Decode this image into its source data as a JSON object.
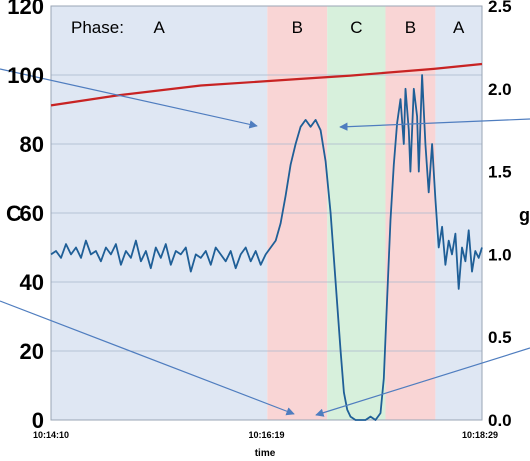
{
  "chart_data": {
    "type": "line",
    "title": "",
    "xlabel": "time",
    "ylabel_left": "C",
    "ylabel_right": "g",
    "x_ticks": [
      "10:14:10",
      "10:16:19",
      "10:18:29"
    ],
    "y_left_ticks": [
      "0",
      "20",
      "40",
      "60",
      "80",
      "100",
      "120"
    ],
    "y_left_range": [
      0,
      120
    ],
    "y_right_ticks": [
      "0.0",
      "0.5",
      "1.0",
      "1.5",
      "2.0",
      "2.5"
    ],
    "y_right_range": [
      0,
      2.5
    ],
    "x_range_seconds": [
      0,
      259
    ],
    "grid": "horizontal",
    "phase_legend_label": "Phase:",
    "phases": [
      {
        "label": "A",
        "start": 0,
        "end": 130,
        "color": "#dfe7f3"
      },
      {
        "label": "B",
        "start": 130,
        "end": 166,
        "color": "#f9d5d5"
      },
      {
        "label": "C",
        "start": 166,
        "end": 201,
        "color": "#d7f0dc"
      },
      {
        "label": "B",
        "start": 201,
        "end": 231,
        "color": "#f9d5d5"
      },
      {
        "label": "A",
        "start": 231,
        "end": 259,
        "color": "#dfe7f3"
      }
    ],
    "series": [
      {
        "axis": "left",
        "color": "#1f5f97",
        "points": [
          [
            0,
            48
          ],
          [
            3,
            49
          ],
          [
            6,
            47
          ],
          [
            9,
            51
          ],
          [
            12,
            48
          ],
          [
            15,
            50
          ],
          [
            18,
            47
          ],
          [
            21,
            52
          ],
          [
            24,
            48
          ],
          [
            27,
            49
          ],
          [
            30,
            46
          ],
          [
            33,
            50
          ],
          [
            36,
            48
          ],
          [
            39,
            51
          ],
          [
            42,
            45
          ],
          [
            45,
            49
          ],
          [
            48,
            47
          ],
          [
            51,
            52
          ],
          [
            54,
            46
          ],
          [
            57,
            49
          ],
          [
            60,
            44
          ],
          [
            63,
            50
          ],
          [
            66,
            47
          ],
          [
            69,
            51
          ],
          [
            72,
            45
          ],
          [
            75,
            49
          ],
          [
            78,
            48
          ],
          [
            81,
            50
          ],
          [
            84,
            43
          ],
          [
            87,
            48
          ],
          [
            90,
            47
          ],
          [
            93,
            49
          ],
          [
            96,
            45
          ],
          [
            99,
            50
          ],
          [
            102,
            48
          ],
          [
            105,
            46
          ],
          [
            108,
            49
          ],
          [
            111,
            44
          ],
          [
            114,
            48
          ],
          [
            117,
            50
          ],
          [
            120,
            46
          ],
          [
            123,
            49
          ],
          [
            126,
            45
          ],
          [
            129,
            48
          ],
          [
            132,
            50
          ],
          [
            135,
            52
          ],
          [
            138,
            57
          ],
          [
            141,
            65
          ],
          [
            144,
            74
          ],
          [
            147,
            80
          ],
          [
            150,
            85
          ],
          [
            153,
            87
          ],
          [
            156,
            85
          ],
          [
            159,
            87
          ],
          [
            162,
            84
          ],
          [
            165,
            75
          ],
          [
            168,
            60
          ],
          [
            171,
            40
          ],
          [
            174,
            20
          ],
          [
            176,
            8
          ],
          [
            178,
            3
          ],
          [
            180,
            1
          ],
          [
            183,
            0
          ],
          [
            186,
            0
          ],
          [
            189,
            0
          ],
          [
            192,
            1
          ],
          [
            195,
            0
          ],
          [
            198,
            2
          ],
          [
            200,
            12
          ],
          [
            202,
            35
          ],
          [
            204,
            58
          ],
          [
            206,
            74
          ],
          [
            208,
            86
          ],
          [
            210,
            93
          ],
          [
            212,
            80
          ],
          [
            213,
            96
          ],
          [
            215,
            84
          ],
          [
            216,
            72
          ],
          [
            218,
            96
          ],
          [
            220,
            88
          ],
          [
            221,
            72
          ],
          [
            223,
            100
          ],
          [
            225,
            80
          ],
          [
            227,
            66
          ],
          [
            229,
            80
          ],
          [
            231,
            64
          ],
          [
            233,
            50
          ],
          [
            235,
            56
          ],
          [
            237,
            45
          ],
          [
            239,
            52
          ],
          [
            241,
            48
          ],
          [
            243,
            54
          ],
          [
            245,
            38
          ],
          [
            247,
            50
          ],
          [
            249,
            46
          ],
          [
            251,
            55
          ],
          [
            253,
            43
          ],
          [
            255,
            49
          ],
          [
            257,
            47
          ],
          [
            259,
            50
          ]
        ]
      },
      {
        "axis": "right",
        "color": "#c82323",
        "points": [
          [
            0,
            1.9
          ],
          [
            40,
            1.96
          ],
          [
            90,
            2.02
          ],
          [
            150,
            2.06
          ],
          [
            180,
            2.08
          ],
          [
            230,
            2.12
          ],
          [
            259,
            2.15
          ]
        ]
      }
    ]
  }
}
